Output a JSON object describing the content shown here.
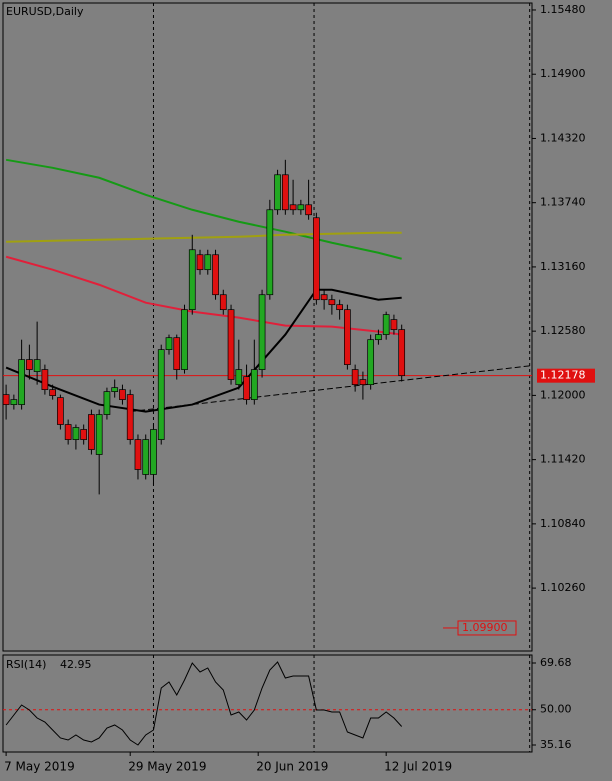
{
  "chart_data": {
    "type": "candlestick",
    "title": "EURUSD,Daily",
    "up_color": "#22a822",
    "down_color": "#e01010",
    "open": [
      1.12007,
      1.11917,
      1.11917,
      1.12323,
      1.12215,
      1.12233,
      1.12052,
      1.1198,
      1.11737,
      1.11601,
      1.11692,
      1.11827,
      1.11466,
      1.11827,
      1.12034,
      1.12052,
      1.12007,
      1.11601,
      1.11286,
      1.11286,
      1.11601,
      1.12413,
      1.12521,
      1.12233,
      1.12774,
      1.1327,
      1.13135,
      1.1327,
      1.12909,
      1.12774,
      1.12097,
      1.12169,
      1.11962,
      1.12233,
      1.12909,
      1.13676,
      1.13992,
      1.13721,
      1.13676,
      1.13721,
      1.13604,
      1.12909,
      1.12864,
      1.12819,
      1.12774,
      1.12233,
      1.12143,
      1.12097,
      1.12503,
      1.12549,
      1.12684,
      1.12594
    ],
    "high": [
      1.12097,
      1.12007,
      1.12503,
      1.12458,
      1.12666,
      1.12278,
      1.12097,
      1.12007,
      1.11782,
      1.11737,
      1.11737,
      1.11872,
      1.11872,
      1.1207,
      1.12143,
      1.12097,
      1.12052,
      1.11647,
      1.11647,
      1.11737,
      1.12458,
      1.12549,
      1.12549,
      1.12819,
      1.1345,
      1.13315,
      1.13315,
      1.13315,
      1.12954,
      1.12819,
      1.12503,
      1.12278,
      1.12503,
      1.12954,
      1.13766,
      1.14037,
      1.14127,
      1.13947,
      1.13766,
      1.13947,
      1.13649,
      1.12954,
      1.12909,
      1.12864,
      1.12819,
      1.12278,
      1.12215,
      1.12549,
      1.12594,
      1.12756,
      1.12729,
      1.12639
    ],
    "low": [
      1.11782,
      1.11872,
      1.11872,
      1.12143,
      1.12097,
      1.12007,
      1.11962,
      1.11692,
      1.11556,
      1.11511,
      1.11556,
      1.11466,
      1.11106,
      1.11782,
      1.1198,
      1.11917,
      1.11556,
      1.11241,
      1.11241,
      1.11196,
      1.11556,
      1.12368,
      1.12143,
      1.12197,
      1.12729,
      1.1309,
      1.1309,
      1.12864,
      1.12729,
      1.12097,
      1.12052,
      1.11917,
      1.11917,
      1.12161,
      1.12864,
      1.13631,
      1.13631,
      1.13631,
      1.13631,
      1.13586,
      1.12819,
      1.12774,
      1.12729,
      1.12684,
      1.12233,
      1.12034,
      1.11962,
      1.12052,
      1.12458,
      1.12503,
      1.12549,
      1.12125
    ],
    "close": [
      1.11917,
      1.11962,
      1.12323,
      1.12233,
      1.12323,
      1.12052,
      1.11998,
      1.11737,
      1.11601,
      1.1171,
      1.11601,
      1.11511,
      1.11827,
      1.12034,
      1.1207,
      1.11962,
      1.11601,
      1.11331,
      1.11601,
      1.11692,
      1.12413,
      1.12521,
      1.12233,
      1.12774,
      1.13315,
      1.13135,
      1.1327,
      1.12909,
      1.12774,
      1.12143,
      1.12233,
      1.11962,
      1.12233,
      1.12909,
      1.13676,
      1.13992,
      1.13676,
      1.13676,
      1.13721,
      1.13631,
      1.12864,
      1.12864,
      1.12819,
      1.12774,
      1.12278,
      1.12097,
      1.12097,
      1.12503,
      1.12549,
      1.12729,
      1.12594,
      1.12178
    ],
    "series": [
      {
        "color": "#159a15",
        "x": [
          0,
          6,
          12,
          18,
          24,
          30,
          36,
          42,
          48,
          51
        ],
        "values": [
          1.14127,
          1.14055,
          1.13965,
          1.13811,
          1.13676,
          1.13568,
          1.13478,
          1.13378,
          1.13288,
          1.13234
        ]
      },
      {
        "color": "#a0a010",
        "x": [
          0,
          6,
          12,
          18,
          24,
          30,
          36,
          42,
          48,
          51
        ],
        "values": [
          1.13387,
          1.13396,
          1.13405,
          1.13414,
          1.13423,
          1.13432,
          1.1345,
          1.13459,
          1.13468,
          1.13468
        ]
      },
      {
        "color": "#e0203a",
        "x": [
          0,
          6,
          12,
          18,
          24,
          30,
          36,
          42,
          48,
          51
        ],
        "values": [
          1.13252,
          1.13135,
          1.12999,
          1.12837,
          1.12756,
          1.12702,
          1.1263,
          1.12621,
          1.12576,
          1.12549
        ]
      },
      {
        "color": "#000000",
        "x": [
          0,
          6,
          12,
          18,
          24,
          30,
          36,
          40,
          42,
          48,
          51
        ],
        "values": [
          1.12251,
          1.12079,
          1.11917,
          1.11854,
          1.11917,
          1.1207,
          1.12549,
          1.12954,
          1.12954,
          1.12864,
          1.12882
        ]
      }
    ],
    "trendline": {
      "x": [
        16,
        67.8
      ],
      "values": [
        1.11854,
        1.12269
      ]
    },
    "current_price": 1.12178,
    "price_marker": {
      "value": 1.099,
      "label": "1.09900"
    },
    "xlim": [
      -0.4,
      67.8
    ],
    "ylim": [
      1.09692,
      1.15543
    ],
    "yticks": [
      {
        "value": 1.1548,
        "label": "1.15480"
      },
      {
        "value": 1.149,
        "label": "1.14900"
      },
      {
        "value": 1.1432,
        "label": "1.14320"
      },
      {
        "value": 1.1374,
        "label": "1.13740"
      },
      {
        "value": 1.1316,
        "label": "1.13160"
      },
      {
        "value": 1.1258,
        "label": "1.12580"
      },
      {
        "value": 1.12,
        "label": "1.12000"
      },
      {
        "value": 1.1142,
        "label": "1.11420"
      },
      {
        "value": 1.1084,
        "label": "1.10840"
      },
      {
        "value": 1.1026,
        "label": "1.10260"
      }
    ],
    "xticks": [
      {
        "value": 0,
        "label": "7 May 2019"
      },
      {
        "value": 16,
        "label": "29 May 2019"
      },
      {
        "value": 32.5,
        "label": "20 Jun 2019"
      },
      {
        "value": 49,
        "label": "12 Jul 2019"
      }
    ],
    "separators": [
      19,
      39.7,
      67.5
    ],
    "rsi": {
      "title": "RSI(14)",
      "color": "#000000",
      "level_color": "#e01010",
      "values": [
        43.58,
        47.79,
        52.0,
        49.89,
        46.52,
        44.84,
        41.47,
        38.11,
        37.26,
        39.37,
        37.26,
        36.42,
        38.11,
        42.31,
        43.58,
        41.47,
        37.26,
        35.16,
        39.37,
        41.47,
        59.15,
        61.68,
        56.21,
        62.52,
        69.68,
        65.89,
        67.58,
        61.68,
        58.31,
        47.79,
        49.05,
        45.68,
        49.89,
        59.15,
        66.73,
        70.1,
        63.37,
        64.21,
        64.21,
        64.21,
        49.89,
        49.89,
        49.05,
        49.05,
        40.63,
        39.37,
        38.11,
        46.52,
        46.52,
        49.05,
        46.52,
        42.95
      ],
      "ylim": [
        32.21,
        73.05
      ],
      "yticks": [
        69.68,
        {
          "value": 50,
          "label": "50.00"
        },
        35.16
      ],
      "level": 50
    }
  }
}
